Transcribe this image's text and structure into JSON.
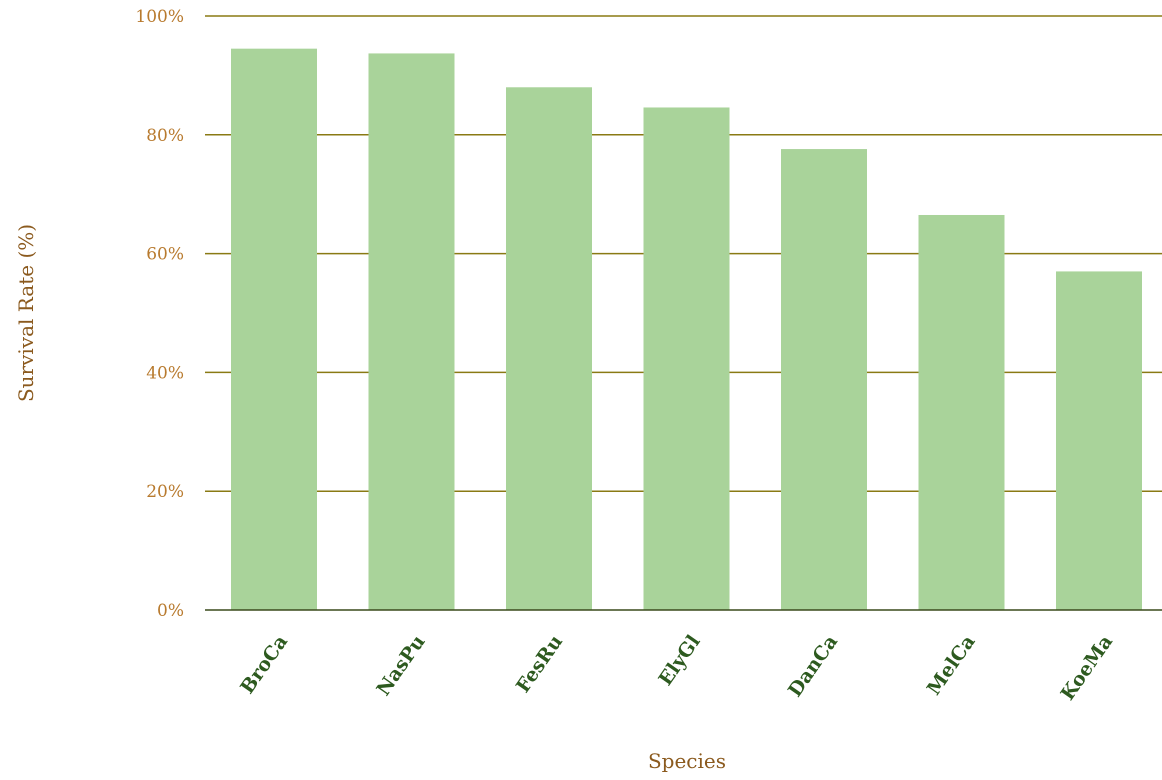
{
  "chart_data": {
    "type": "bar",
    "categories": [
      "BroCa",
      "NasPu",
      "FesRu",
      "ElyGl",
      "DanCa",
      "MelCa",
      "KoeMa"
    ],
    "values": [
      94.5,
      93.7,
      88.0,
      84.6,
      77.6,
      66.5,
      57.0
    ],
    "title": "",
    "xlabel": "Species",
    "ylabel": "Survival Rate (%)",
    "ylim": [
      0,
      100
    ],
    "yticks": [
      0,
      20,
      40,
      60,
      80,
      100
    ],
    "ytick_labels": [
      "0%",
      "20%",
      "40%",
      "60%",
      "80%",
      "100%"
    ],
    "grid": true,
    "bar_color": "#a9d39a",
    "grid_color": "#8a7a14",
    "tick_label_color": "#b87a2e",
    "category_label_color": "#2d5a1f",
    "axis_title_color": "#8b5a1e"
  }
}
